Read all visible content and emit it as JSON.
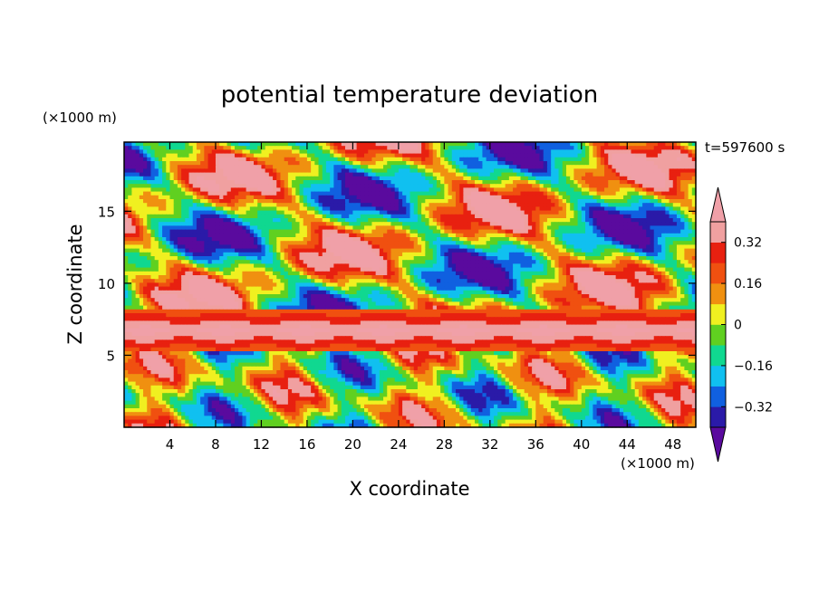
{
  "chart_data": {
    "type": "heatmap",
    "title": "potential temperature deviation",
    "xlabel": "X coordinate",
    "ylabel": "Z coordinate",
    "x_unit_label": "(×1000 m)",
    "y_unit_label": "(×1000 m)",
    "time_label": "t=597600 s",
    "xlim": [
      0,
      50
    ],
    "ylim": [
      0,
      19.8
    ],
    "x_ticks": [
      4,
      8,
      12,
      16,
      20,
      24,
      28,
      32,
      36,
      40,
      44,
      48
    ],
    "y_ticks": [
      5,
      10,
      15
    ],
    "x_tick_labels": [
      "4",
      "8",
      "12",
      "16",
      "20",
      "24",
      "28",
      "32",
      "36",
      "40",
      "44",
      "48"
    ],
    "y_tick_labels": [
      "5",
      "10",
      "15"
    ],
    "colorbar": {
      "levels": [
        -0.4,
        -0.32,
        -0.24,
        -0.16,
        -0.08,
        0,
        0.08,
        0.16,
        0.24,
        0.32,
        0.4
      ],
      "tick_values": [
        0.32,
        0.16,
        0,
        -0.16,
        -0.32
      ],
      "tick_labels": [
        "0.32",
        "0.16",
        "0",
        "−0.16",
        "−0.32"
      ],
      "colors": [
        "#5a0a9e",
        "#2a1aa8",
        "#1060e0",
        "#10c0f0",
        "#10d890",
        "#60d020",
        "#f0f020",
        "#f09010",
        "#f05010",
        "#e82010",
        "#f0a0a0",
        "#f0a0a8"
      ],
      "extend": "both"
    }
  }
}
